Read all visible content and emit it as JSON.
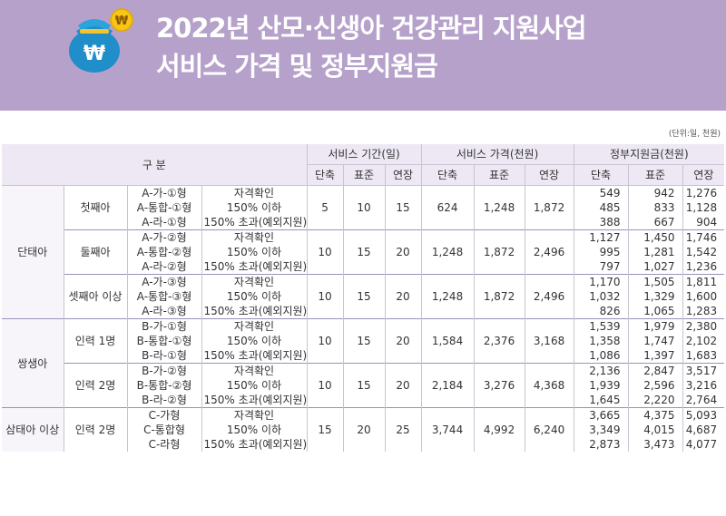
{
  "banner": {
    "title_line1": "2022년 산모·신생아 건강관리 지원사업",
    "title_line2": "서비스 가격 및 정부지원금",
    "icon": "money-pouch-won-icon",
    "coin_symbol": "₩",
    "bg_color": "#b6a1cb"
  },
  "unit_note": "(단위:일, 천원)",
  "headers": {
    "category": "구 분",
    "period": "서비스 기간(일)",
    "price": "서비스 가격(천원)",
    "subsidy": "정부지원금(천원)",
    "sub": [
      "단축",
      "표준",
      "연장",
      "단축",
      "표준",
      "연장",
      "단축",
      "표준",
      "연장"
    ]
  },
  "groups": [
    {
      "name": "단태아",
      "subgroups": [
        {
          "name": "첫째아",
          "period": [
            "5",
            "10",
            "15"
          ],
          "price": [
            "624",
            "1,248",
            "1,872"
          ],
          "rows": [
            {
              "type": "A-가-①형",
              "income": "자격확인",
              "subsidy": [
                "549",
                "942",
                "1,276"
              ]
            },
            {
              "type": "A-통합-①형",
              "income": "150% 이하",
              "subsidy": [
                "485",
                "833",
                "1,128"
              ]
            },
            {
              "type": "A-라-①형",
              "income": "150% 초과(예외지원)",
              "subsidy": [
                "388",
                "667",
                "904"
              ]
            }
          ]
        },
        {
          "name": "둘째아",
          "period": [
            "10",
            "15",
            "20"
          ],
          "price": [
            "1,248",
            "1,872",
            "2,496"
          ],
          "rows": [
            {
              "type": "A-가-②형",
              "income": "자격확인",
              "subsidy": [
                "1,127",
                "1,450",
                "1,746"
              ]
            },
            {
              "type": "A-통합-②형",
              "income": "150% 이하",
              "subsidy": [
                "995",
                "1,281",
                "1,542"
              ]
            },
            {
              "type": "A-라-②형",
              "income": "150% 초과(예외지원)",
              "subsidy": [
                "797",
                "1,027",
                "1,236"
              ]
            }
          ]
        },
        {
          "name": "셋째아 이상",
          "period": [
            "10",
            "15",
            "20"
          ],
          "price": [
            "1,248",
            "1,872",
            "2,496"
          ],
          "rows": [
            {
              "type": "A-가-③형",
              "income": "자격확인",
              "subsidy": [
                "1,170",
                "1,505",
                "1,811"
              ]
            },
            {
              "type": "A-통합-③형",
              "income": "150% 이하",
              "subsidy": [
                "1,032",
                "1,329",
                "1,600"
              ]
            },
            {
              "type": "A-라-③형",
              "income": "150% 초과(예외지원)",
              "subsidy": [
                "826",
                "1,065",
                "1,283"
              ]
            }
          ]
        }
      ]
    },
    {
      "name": "쌍생아",
      "subgroups": [
        {
          "name": "인력 1명",
          "period": [
            "10",
            "15",
            "20"
          ],
          "price": [
            "1,584",
            "2,376",
            "3,168"
          ],
          "rows": [
            {
              "type": "B-가-①형",
              "income": "자격확인",
              "subsidy": [
                "1,539",
                "1,979",
                "2,380"
              ]
            },
            {
              "type": "B-통합-①형",
              "income": "150% 이하",
              "subsidy": [
                "1,358",
                "1,747",
                "2,102"
              ]
            },
            {
              "type": "B-라-①형",
              "income": "150% 초과(예외지원)",
              "subsidy": [
                "1,086",
                "1,397",
                "1,683"
              ]
            }
          ]
        },
        {
          "name": "인력 2명",
          "period": [
            "10",
            "15",
            "20"
          ],
          "price": [
            "2,184",
            "3,276",
            "4,368"
          ],
          "rows": [
            {
              "type": "B-가-②형",
              "income": "자격확인",
              "subsidy": [
                "2,136",
                "2,847",
                "3,517"
              ]
            },
            {
              "type": "B-통합-②형",
              "income": "150% 이하",
              "subsidy": [
                "1,939",
                "2,596",
                "3,216"
              ]
            },
            {
              "type": "B-라-②형",
              "income": "150% 초과(예외지원)",
              "subsidy": [
                "1,645",
                "2,220",
                "2,764"
              ]
            }
          ]
        }
      ]
    },
    {
      "name": "삼태아 이상",
      "subgroups": [
        {
          "name": "인력 2명",
          "period": [
            "15",
            "20",
            "25"
          ],
          "price": [
            "3,744",
            "4,992",
            "6,240"
          ],
          "rows": [
            {
              "type": "C-가형",
              "income": "자격확인",
              "subsidy": [
                "3,665",
                "4,375",
                "5,093"
              ]
            },
            {
              "type": "C-통합형",
              "income": "150% 이하",
              "subsidy": [
                "3,349",
                "4,015",
                "4,687"
              ]
            },
            {
              "type": "C-라형",
              "income": "150% 초과(예외지원)",
              "subsidy": [
                "2,873",
                "3,473",
                "4,077"
              ]
            }
          ]
        }
      ]
    }
  ]
}
